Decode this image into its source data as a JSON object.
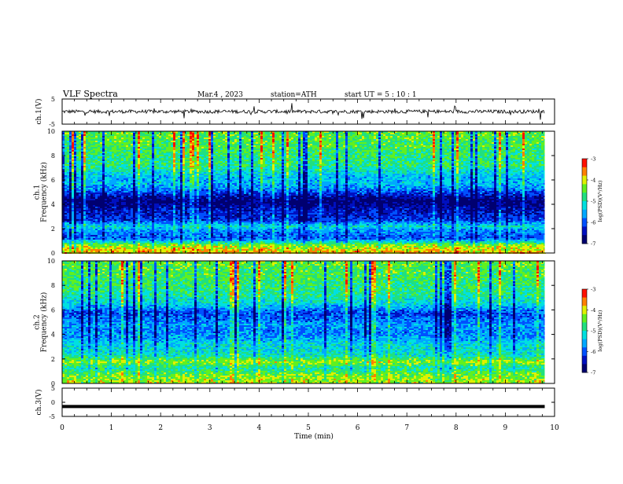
{
  "header": {
    "title": "VLF  Spectra",
    "date": "Mar.4  , 2023",
    "station": "station=ATH",
    "start": "start  UT  =   5  : 10 : 1"
  },
  "colors": {
    "colormap": [
      "#000070",
      "#0010c0",
      "#0050ff",
      "#00a8ff",
      "#00e0e0",
      "#20e080",
      "#60f020",
      "#e0f000",
      "#ff8000",
      "#ff1000",
      "#ffffff"
    ],
    "frame": "#000000",
    "waveform": "#000000"
  },
  "chart_data": [
    {
      "id": "ch1-waveform",
      "type": "line",
      "ylabel": "ch.1(V)",
      "ylim": [
        -5,
        5
      ],
      "yticks": [
        "5",
        "-5"
      ],
      "xlim": [
        0,
        10
      ],
      "series": [
        {
          "x_range": [
            0,
            9.8
          ],
          "baseline": 0,
          "noise_amplitude": 0.7,
          "spike_amplitude": 3
        }
      ]
    },
    {
      "id": "ch1-spectrogram",
      "type": "heatmap",
      "ylabel": "ch.1\nFrequency  (kHz)",
      "ylim": [
        0,
        10
      ],
      "yticks": [
        "0",
        "2",
        "4",
        "6",
        "8",
        "10"
      ],
      "xlim": [
        0,
        10
      ],
      "data_x_range": [
        0,
        9.8
      ],
      "colorbar": {
        "label": "log(PSD)(V²/Hz)",
        "range": [
          -7,
          -3
        ],
        "ticks": [
          "-3",
          "-4",
          "-5",
          "-6",
          "-7"
        ]
      },
      "frequency_profile": [
        {
          "f": 0.25,
          "level": -3.8
        },
        {
          "f": 0.75,
          "level": -4.4
        },
        {
          "f": 1.25,
          "level": -6.0
        },
        {
          "f": 1.75,
          "level": -5.8
        },
        {
          "f": 2.25,
          "level": -5.2
        },
        {
          "f": 2.75,
          "level": -6.2
        },
        {
          "f": 3.25,
          "level": -6.3
        },
        {
          "f": 3.75,
          "level": -6.5
        },
        {
          "f": 4.25,
          "level": -6.9
        },
        {
          "f": 4.75,
          "level": -6.4
        },
        {
          "f": 5.25,
          "level": -5.8
        },
        {
          "f": 5.75,
          "level": -5.4
        },
        {
          "f": 6.25,
          "level": -5.5
        },
        {
          "f": 6.75,
          "level": -5.1
        },
        {
          "f": 7.25,
          "level": -4.8
        },
        {
          "f": 7.75,
          "level": -4.8
        },
        {
          "f": 8.25,
          "level": -4.7
        },
        {
          "f": 8.75,
          "level": -4.6
        },
        {
          "f": 9.25,
          "level": -4.6
        },
        {
          "f": 9.75,
          "level": -4.5
        }
      ]
    },
    {
      "id": "ch2-spectrogram",
      "type": "heatmap",
      "ylabel": "ch.2\nFrequency  (kHz)",
      "ylim": [
        0,
        10
      ],
      "yticks": [
        "0",
        "2",
        "4",
        "6",
        "8",
        "10"
      ],
      "xlim": [
        0,
        10
      ],
      "data_x_range": [
        0,
        9.8
      ],
      "colorbar": {
        "label": "log(PSD)(V²/Hz)",
        "range": [
          -7,
          -3
        ],
        "ticks": [
          "-3",
          "-4",
          "-5",
          "-6",
          "-7"
        ]
      },
      "frequency_profile": [
        {
          "f": 0.25,
          "level": -4.2
        },
        {
          "f": 0.75,
          "level": -4.4
        },
        {
          "f": 1.25,
          "level": -5.0
        },
        {
          "f": 1.75,
          "level": -4.2
        },
        {
          "f": 2.25,
          "level": -5.0
        },
        {
          "f": 2.75,
          "level": -5.2
        },
        {
          "f": 3.25,
          "level": -5.3
        },
        {
          "f": 3.75,
          "level": -5.6
        },
        {
          "f": 4.25,
          "level": -5.8
        },
        {
          "f": 4.75,
          "level": -5.6
        },
        {
          "f": 5.25,
          "level": -5.9
        },
        {
          "f": 5.75,
          "level": -6.1
        },
        {
          "f": 6.25,
          "level": -5.5
        },
        {
          "f": 6.75,
          "level": -5.1
        },
        {
          "f": 7.25,
          "level": -4.9
        },
        {
          "f": 7.75,
          "level": -4.8
        },
        {
          "f": 8.25,
          "level": -4.7
        },
        {
          "f": 8.75,
          "level": -4.6
        },
        {
          "f": 9.25,
          "level": -4.6
        },
        {
          "f": 9.75,
          "level": -4.5
        }
      ]
    },
    {
      "id": "ch3-waveform",
      "type": "line",
      "ylabel": "ch.3(V)",
      "ylim": [
        -5,
        5
      ],
      "yticks": [
        "5",
        "0",
        "-5"
      ],
      "xlim": [
        0,
        10
      ],
      "series": [
        {
          "x_range": [
            0,
            9.8
          ],
          "constant": -1.5
        }
      ]
    }
  ],
  "x_axis": {
    "label": "Time  (min)",
    "ticks": [
      "0",
      "1",
      "2",
      "3",
      "4",
      "5",
      "6",
      "7",
      "8",
      "9",
      "10"
    ]
  }
}
